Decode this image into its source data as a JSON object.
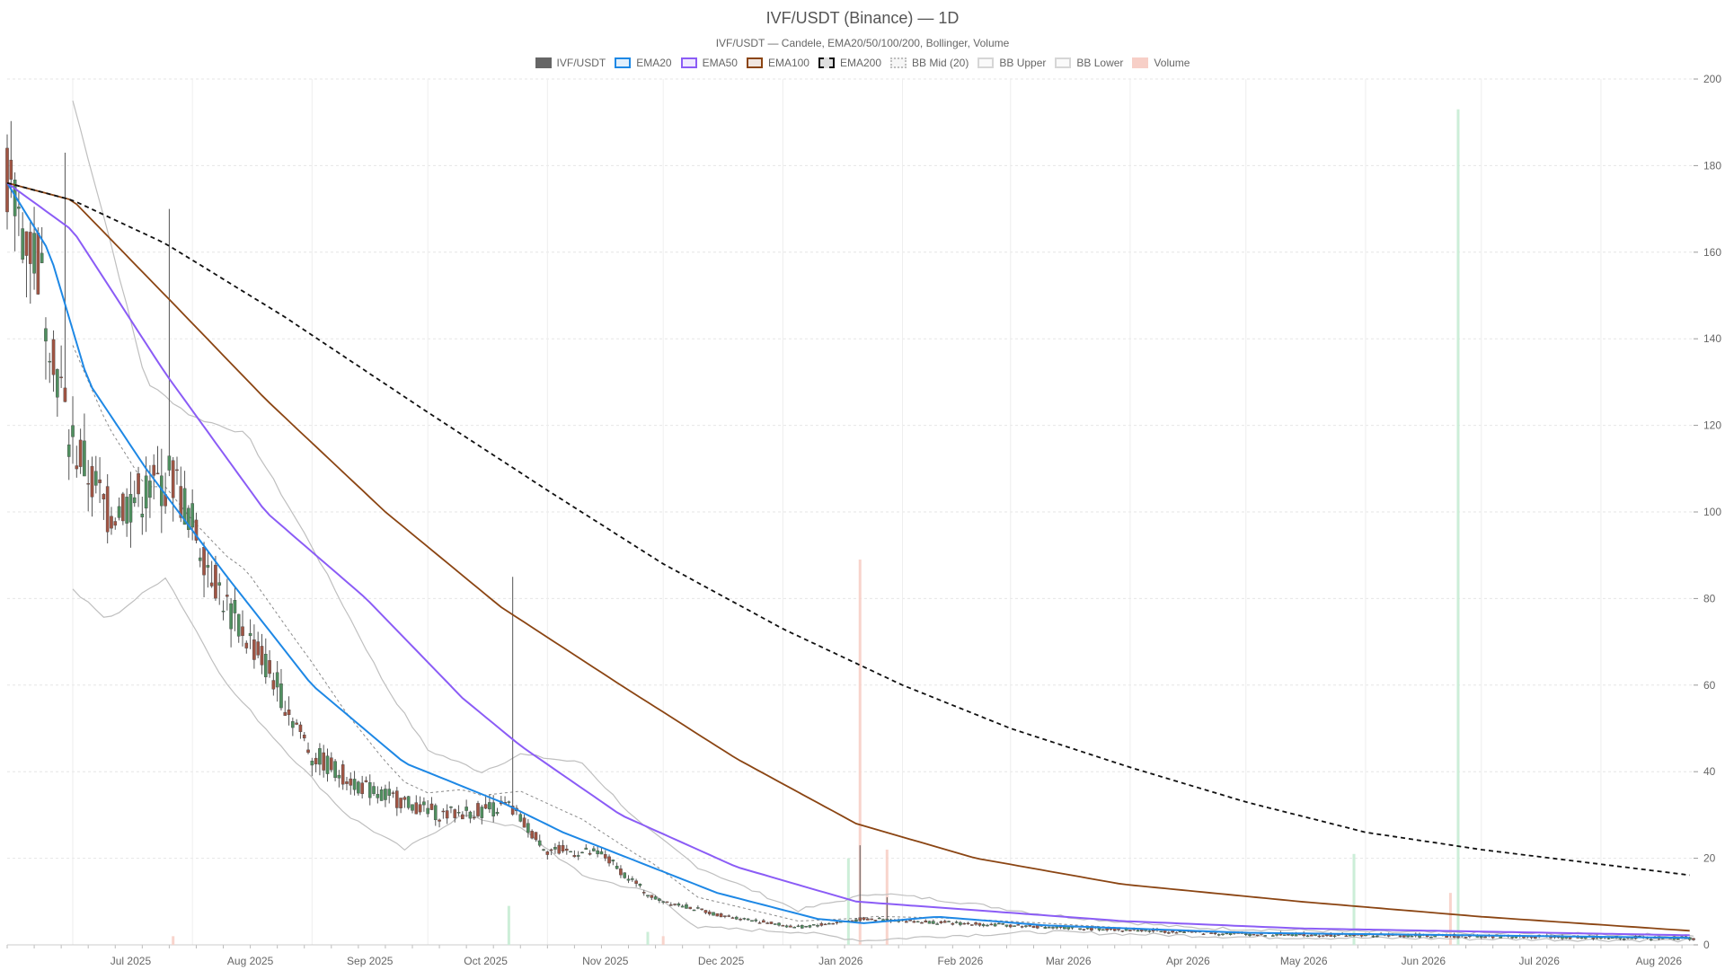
{
  "colors": {
    "up": "#4f8f5f",
    "down": "#a05443",
    "ema20": "#1e88e5",
    "ema50": "#8b5cf6",
    "ema100": "#8b4513",
    "ema200": "#111111",
    "bb": "#bfbfbf",
    "bb_mid": "#8a8a8a",
    "vol_up": "#c7ecd4",
    "vol_down": "#f7cfc7",
    "grid": "#e6e6e6"
  },
  "chart_data": {
    "type": "candlestick",
    "title": "IVF/USDT (Binance) — 1D",
    "subtitle": "IVF/USDT — Candele, EMA20/50/100/200, Bollinger, Volume",
    "legend": [
      {
        "label": "IVF/USDT",
        "style": "solid-fill",
        "color": "#666666"
      },
      {
        "label": "EMA20",
        "style": "box",
        "color": "#1e88e5"
      },
      {
        "label": "EMA50",
        "style": "box",
        "color": "#8b5cf6"
      },
      {
        "label": "EMA100",
        "style": "box",
        "color": "#8b4513"
      },
      {
        "label": "EMA200",
        "style": "dashed",
        "color": "#111111"
      },
      {
        "label": "BB Mid (20)",
        "style": "dotted",
        "color": "#bdbdbd"
      },
      {
        "label": "BB Upper",
        "style": "box",
        "color": "#d6d6d6"
      },
      {
        "label": "BB Lower",
        "style": "box",
        "color": "#d6d6d6"
      },
      {
        "label": "Volume",
        "style": "solid",
        "color": "#f7cfc7"
      }
    ],
    "x_start": "2025-06-14",
    "x_end": "2026-08-25",
    "x_ticks": [
      "Jul 2025",
      "Aug 2025",
      "Sep 2025",
      "Oct 2025",
      "Nov 2025",
      "Dec 2025",
      "Jan 2026",
      "Feb 2026",
      "Mar 2026",
      "Apr 2026",
      "May 2026",
      "Jun 2026",
      "Jul 2026",
      "Aug 2026"
    ],
    "y_ticks": [
      0,
      20,
      40,
      60,
      80,
      100,
      120,
      140,
      160,
      180,
      200
    ],
    "ylim": [
      0,
      200
    ],
    "y_axis_side": "right",
    "grid": true,
    "price_anchors": [
      [
        "2025-06-14",
        175
      ],
      [
        "2025-06-22",
        158
      ],
      [
        "2025-06-30",
        118
      ],
      [
        "2025-07-10",
        100
      ],
      [
        "2025-07-27",
        108
      ],
      [
        "2025-08-10",
        78
      ],
      [
        "2025-08-20",
        65
      ],
      [
        "2025-09-01",
        44
      ],
      [
        "2025-09-15",
        36
      ],
      [
        "2025-10-05",
        30
      ],
      [
        "2025-10-22",
        32
      ],
      [
        "2025-11-01",
        22
      ],
      [
        "2025-11-15",
        21
      ],
      [
        "2025-11-28",
        11
      ],
      [
        "2025-12-15",
        7
      ],
      [
        "2026-01-05",
        4
      ],
      [
        "2026-01-22",
        6
      ],
      [
        "2026-02-15",
        5
      ],
      [
        "2026-03-15",
        4
      ],
      [
        "2026-05-01",
        2.5
      ],
      [
        "2026-07-01",
        2
      ],
      [
        "2026-08-25",
        1.5
      ]
    ],
    "price_spikes": [
      [
        "2025-06-29",
        183
      ],
      [
        "2025-07-26",
        170
      ],
      [
        "2025-10-23",
        85
      ],
      [
        "2026-01-21",
        23
      ],
      [
        "2026-01-28",
        11
      ]
    ],
    "ema_anchors": {
      "EMA20": [
        [
          "2025-06-14",
          176
        ],
        [
          "2025-06-25",
          160
        ],
        [
          "2025-07-05",
          130
        ],
        [
          "2025-07-20",
          110
        ],
        [
          "2025-08-10",
          85
        ],
        [
          "2025-09-01",
          60
        ],
        [
          "2025-09-25",
          42
        ],
        [
          "2025-10-20",
          33
        ],
        [
          "2025-11-05",
          26
        ],
        [
          "2025-11-25",
          19
        ],
        [
          "2025-12-15",
          12
        ],
        [
          "2026-01-10",
          6
        ],
        [
          "2026-01-22",
          5
        ],
        [
          "2026-02-10",
          6.5
        ],
        [
          "2026-03-10",
          4.5
        ],
        [
          "2026-05-01",
          2.8
        ],
        [
          "2026-08-25",
          1.6
        ]
      ],
      "EMA50": [
        [
          "2025-06-14",
          176
        ],
        [
          "2025-07-01",
          165
        ],
        [
          "2025-07-25",
          132
        ],
        [
          "2025-08-20",
          100
        ],
        [
          "2025-09-15",
          80
        ],
        [
          "2025-10-10",
          57
        ],
        [
          "2025-10-25",
          46
        ],
        [
          "2025-11-20",
          30
        ],
        [
          "2025-12-20",
          18
        ],
        [
          "2026-01-20",
          10
        ],
        [
          "2026-02-20",
          8
        ],
        [
          "2026-03-30",
          5.5
        ],
        [
          "2026-05-15",
          3.8
        ],
        [
          "2026-08-25",
          2.2
        ]
      ],
      "EMA100": [
        [
          "2025-06-14",
          176
        ],
        [
          "2025-07-01",
          172
        ],
        [
          "2025-07-25",
          150
        ],
        [
          "2025-08-20",
          126
        ],
        [
          "2025-09-20",
          100
        ],
        [
          "2025-10-20",
          78
        ],
        [
          "2025-11-20",
          60
        ],
        [
          "2025-12-20",
          43
        ],
        [
          "2026-01-20",
          28
        ],
        [
          "2026-02-20",
          20
        ],
        [
          "2026-03-30",
          14
        ],
        [
          "2026-05-15",
          10
        ],
        [
          "2026-07-01",
          6.5
        ],
        [
          "2026-08-25",
          3.2
        ]
      ],
      "EMA200": [
        [
          "2025-06-14",
          176
        ],
        [
          "2025-07-01",
          172
        ],
        [
          "2025-07-25",
          162
        ],
        [
          "2025-08-25",
          145
        ],
        [
          "2025-10-01",
          123
        ],
        [
          "2025-11-01",
          105
        ],
        [
          "2025-12-01",
          88
        ],
        [
          "2026-01-01",
          73
        ],
        [
          "2026-02-01",
          60
        ],
        [
          "2026-03-01",
          50
        ],
        [
          "2026-04-01",
          41
        ],
        [
          "2026-05-01",
          33
        ],
        [
          "2026-06-01",
          26
        ],
        [
          "2026-07-01",
          22
        ],
        [
          "2026-08-25",
          16
        ]
      ]
    },
    "bb_upper_anchors": [
      [
        "2025-07-01",
        195
      ],
      [
        "2025-07-10",
        165
      ],
      [
        "2025-07-20",
        130
      ],
      [
        "2025-08-01",
        122
      ],
      [
        "2025-08-15",
        118
      ],
      [
        "2025-09-01",
        92
      ],
      [
        "2025-09-20",
        60
      ],
      [
        "2025-10-01",
        45
      ],
      [
        "2025-10-15",
        40
      ],
      [
        "2025-10-25",
        44
      ],
      [
        "2025-11-10",
        42
      ],
      [
        "2025-11-25",
        28
      ],
      [
        "2025-12-10",
        18
      ],
      [
        "2026-01-05",
        8
      ],
      [
        "2026-01-25",
        12
      ],
      [
        "2026-02-15",
        10
      ],
      [
        "2026-03-10",
        7
      ],
      [
        "2026-04-15",
        4
      ],
      [
        "2026-06-01",
        3
      ],
      [
        "2026-08-25",
        2.2
      ]
    ],
    "bb_lower_anchors": [
      [
        "2025-07-01",
        82
      ],
      [
        "2025-07-10",
        75
      ],
      [
        "2025-07-25",
        85
      ],
      [
        "2025-08-10",
        60
      ],
      [
        "2025-08-25",
        45
      ],
      [
        "2025-09-10",
        30
      ],
      [
        "2025-09-25",
        22
      ],
      [
        "2025-10-10",
        30
      ],
      [
        "2025-10-25",
        27
      ],
      [
        "2025-11-10",
        16
      ],
      [
        "2025-11-28",
        12
      ],
      [
        "2025-12-10",
        4
      ],
      [
        "2026-01-05",
        3
      ],
      [
        "2026-01-22",
        1
      ],
      [
        "2026-02-10",
        2
      ],
      [
        "2026-03-10",
        3
      ],
      [
        "2026-05-01",
        1.8
      ],
      [
        "2026-08-25",
        1.0
      ]
    ],
    "volume_spikes": [
      {
        "date": "2026-01-21",
        "height": 89,
        "dir": "down"
      },
      {
        "date": "2026-01-28",
        "height": 22,
        "dir": "down"
      },
      {
        "date": "2026-01-18",
        "height": 20,
        "dir": "up"
      },
      {
        "date": "2026-06-25",
        "height": 193,
        "dir": "up"
      },
      {
        "date": "2026-05-29",
        "height": 21,
        "dir": "up"
      },
      {
        "date": "2025-10-22",
        "height": 9,
        "dir": "up"
      },
      {
        "date": "2025-11-27",
        "height": 3,
        "dir": "up"
      },
      {
        "date": "2025-12-01",
        "height": 2,
        "dir": "down"
      },
      {
        "date": "2026-06-23",
        "height": 12,
        "dir": "down"
      },
      {
        "date": "2025-07-27",
        "height": 2,
        "dir": "down"
      }
    ]
  }
}
